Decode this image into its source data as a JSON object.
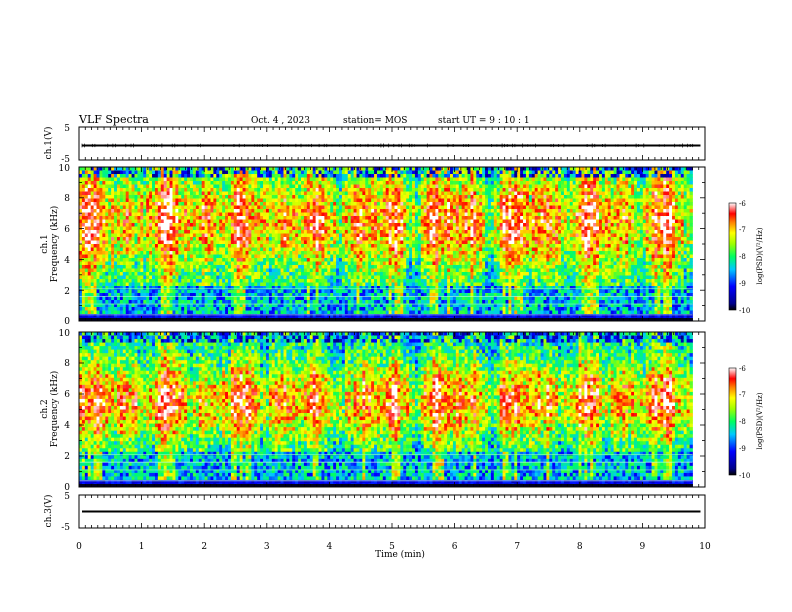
{
  "header": {
    "title": "VLF Spectra",
    "date": "Oct. 4  , 2023",
    "station": "station= MOS",
    "start": "start  UT  =   9  : 10 : 1"
  },
  "chart_data": [
    {
      "type": "line",
      "name": "ch1-waveform",
      "ylabel": "ch.1(V)",
      "ylim": [
        -5,
        5
      ],
      "yticks": [
        "5",
        "-5"
      ],
      "xlim": [
        0,
        10
      ],
      "level": 0
    },
    {
      "type": "heatmap",
      "name": "ch1-spectrogram",
      "ylabel_line1": "ch.1",
      "ylabel_line2": "Frequency (kHz)",
      "ylim": [
        0,
        10
      ],
      "yticks": [
        "0",
        "2",
        "4",
        "6",
        "8",
        "10"
      ],
      "xlim": [
        0,
        10
      ],
      "data_end_min": 9.8,
      "colorbar": {
        "label": "log(PSD)(V²/Hz)",
        "range": [
          -10,
          -6
        ],
        "ticks": [
          "-6",
          "-7",
          "-8",
          "-9",
          "-10"
        ]
      }
    },
    {
      "type": "heatmap",
      "name": "ch2-spectrogram",
      "ylabel_line1": "ch.2",
      "ylabel_line2": "Frequency (kHz)",
      "ylim": [
        0,
        10
      ],
      "yticks": [
        "0",
        "2",
        "4",
        "6",
        "8",
        "10"
      ],
      "xlim": [
        0,
        10
      ],
      "data_end_min": 9.8,
      "colorbar": {
        "label": "log(PSD)(V²/Hz)",
        "range": [
          -10,
          -6
        ],
        "ticks": [
          "-6",
          "-7",
          "-8",
          "-9",
          "-10"
        ]
      }
    },
    {
      "type": "line",
      "name": "ch3-waveform",
      "ylabel": "ch.3(V)",
      "ylim": [
        -5,
        5
      ],
      "yticks": [
        "5",
        "-5"
      ],
      "xlim": [
        0,
        10
      ],
      "level": 0
    }
  ],
  "xaxis": {
    "label": "Time  (min)",
    "ticks": [
      "0",
      "1",
      "2",
      "3",
      "4",
      "5",
      "6",
      "7",
      "8",
      "9",
      "10"
    ]
  }
}
